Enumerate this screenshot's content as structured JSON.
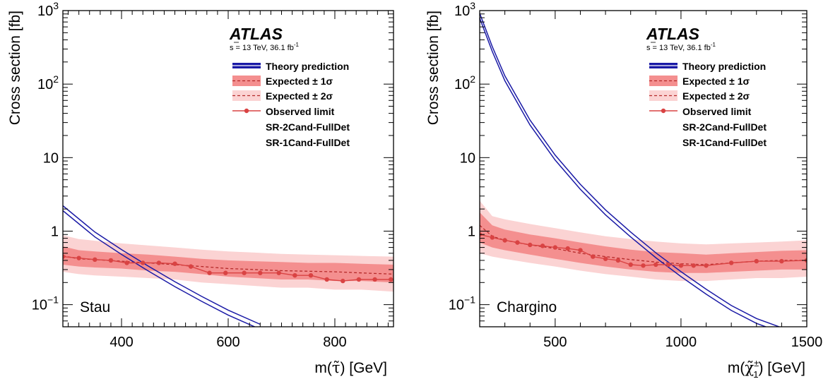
{
  "chart_data": [
    {
      "type": "line",
      "panel_label": "Stau",
      "ylabel": "Cross section [fb]",
      "xlabel": "m(τ̃) [GeV]",
      "xlabel_main": "m",
      "xlabel_particle": "τ̃",
      "xlabel_unit": "[GeV]",
      "xlim": [
        290,
        910
      ],
      "ylim": [
        0.05,
        1000
      ],
      "yscale": "log",
      "xticks": [
        400,
        600,
        800
      ],
      "yticks": [
        {
          "value": 0.1,
          "base": "10",
          "exp": "−1"
        },
        {
          "value": 1,
          "label": "1"
        },
        {
          "value": 10,
          "label": "10"
        },
        {
          "value": 100,
          "base": "10",
          "exp": "2"
        },
        {
          "value": 1000,
          "base": "10",
          "exp": "3"
        }
      ],
      "atlas": {
        "name": "ATLAS",
        "energy": "s = 13 TeV, 36.1 fb",
        "lumi_exp": "-1"
      },
      "legend": [
        "Theory prediction",
        "Expected ± 1σ",
        "Expected ± 2σ",
        "Observed limit",
        "SR-2Cand-FullDet",
        "SR-1Cand-FullDet"
      ],
      "theory": {
        "x": [
          290,
          350,
          400,
          450,
          500,
          550,
          600,
          660
        ],
        "y": [
          2.05,
          0.9,
          0.52,
          0.31,
          0.19,
          0.12,
          0.078,
          0.05
        ]
      },
      "expected": {
        "x": [
          290,
          320,
          350,
          400,
          450,
          500,
          550,
          600,
          650,
          700,
          750,
          800,
          850,
          910
        ],
        "y": [
          0.46,
          0.42,
          0.41,
          0.39,
          0.37,
          0.35,
          0.33,
          0.31,
          0.3,
          0.29,
          0.285,
          0.28,
          0.27,
          0.26
        ],
        "band1_lo": [
          0.35,
          0.33,
          0.32,
          0.31,
          0.29,
          0.28,
          0.26,
          0.24,
          0.23,
          0.22,
          0.22,
          0.21,
          0.21,
          0.2
        ],
        "band1_hi": [
          0.62,
          0.55,
          0.53,
          0.5,
          0.48,
          0.45,
          0.42,
          0.4,
          0.39,
          0.38,
          0.37,
          0.37,
          0.36,
          0.35
        ],
        "band2_lo": [
          0.28,
          0.26,
          0.25,
          0.24,
          0.23,
          0.22,
          0.2,
          0.19,
          0.18,
          0.17,
          0.17,
          0.16,
          0.16,
          0.15
        ],
        "band2_hi": [
          0.88,
          0.78,
          0.74,
          0.68,
          0.64,
          0.6,
          0.56,
          0.53,
          0.51,
          0.49,
          0.48,
          0.47,
          0.46,
          0.45
        ]
      },
      "observed": {
        "x": [
          290,
          320,
          350,
          380,
          410,
          440,
          470,
          500,
          530,
          565,
          595,
          630,
          660,
          695,
          725,
          755,
          785,
          815,
          845,
          875,
          905
        ],
        "y": [
          0.45,
          0.43,
          0.41,
          0.4,
          0.37,
          0.37,
          0.37,
          0.36,
          0.33,
          0.27,
          0.27,
          0.27,
          0.27,
          0.27,
          0.25,
          0.25,
          0.22,
          0.21,
          0.22,
          0.22,
          0.22
        ]
      }
    },
    {
      "type": "line",
      "panel_label": "Chargino",
      "ylabel": "Cross section [fb]",
      "xlabel": "m(χ̃₁±) [GeV]",
      "xlabel_main": "m",
      "xlabel_particle": "χ̃",
      "xlabel_sup": "±",
      "xlabel_sub": "1",
      "xlabel_unit": "[GeV]",
      "xlim": [
        200,
        1500
      ],
      "ylim": [
        0.05,
        1000
      ],
      "yscale": "log",
      "xticks": [
        500,
        1000,
        1500
      ],
      "yticks": [
        {
          "value": 0.1,
          "base": "10",
          "exp": "−1"
        },
        {
          "value": 1,
          "label": "1"
        },
        {
          "value": 10,
          "label": "10"
        },
        {
          "value": 100,
          "base": "10",
          "exp": "2"
        },
        {
          "value": 1000,
          "base": "10",
          "exp": "3"
        }
      ],
      "atlas": {
        "name": "ATLAS",
        "energy": "s = 13 TeV, 36.1 fb",
        "lumi_exp": "-1"
      },
      "legend": [
        "Theory prediction",
        "Expected ± 1σ",
        "Expected ± 2σ",
        "Observed limit",
        "SR-2Cand-FullDet",
        "SR-1Cand-FullDet"
      ],
      "theory": {
        "x": [
          200,
          250,
          300,
          400,
          500,
          600,
          700,
          800,
          900,
          1000,
          1100,
          1200,
          1300,
          1400,
          1500
        ],
        "y": [
          850,
          300,
          120,
          30,
          10,
          4,
          1.8,
          0.9,
          0.47,
          0.26,
          0.15,
          0.09,
          0.06,
          0.045,
          0.042
        ]
      },
      "expected": {
        "x": [
          200,
          250,
          300,
          400,
          500,
          600,
          700,
          800,
          900,
          1000,
          1100,
          1200,
          1300,
          1400,
          1500
        ],
        "y": [
          1.2,
          0.85,
          0.75,
          0.65,
          0.58,
          0.5,
          0.45,
          0.41,
          0.38,
          0.36,
          0.35,
          0.37,
          0.39,
          0.4,
          0.4
        ],
        "band1_lo": [
          0.7,
          0.6,
          0.55,
          0.48,
          0.42,
          0.37,
          0.33,
          0.3,
          0.28,
          0.27,
          0.27,
          0.28,
          0.29,
          0.3,
          0.3
        ],
        "band1_hi": [
          1.8,
          1.2,
          1.05,
          0.9,
          0.8,
          0.7,
          0.62,
          0.56,
          0.52,
          0.5,
          0.48,
          0.5,
          0.52,
          0.54,
          0.55
        ],
        "band2_lo": [
          0.5,
          0.45,
          0.42,
          0.37,
          0.33,
          0.29,
          0.26,
          0.24,
          0.22,
          0.21,
          0.21,
          0.22,
          0.23,
          0.23,
          0.24
        ],
        "band2_hi": [
          2.6,
          1.6,
          1.45,
          1.25,
          1.1,
          0.96,
          0.85,
          0.78,
          0.72,
          0.68,
          0.66,
          0.68,
          0.7,
          0.72,
          0.75
        ]
      },
      "observed": {
        "x": [
          200,
          250,
          300,
          350,
          400,
          450,
          500,
          550,
          600,
          650,
          700,
          750,
          800,
          850,
          900,
          950,
          1000,
          1050,
          1100,
          1200,
          1300,
          1400,
          1500
        ],
        "y": [
          0.9,
          0.82,
          0.75,
          0.7,
          0.65,
          0.63,
          0.6,
          0.58,
          0.55,
          0.45,
          0.42,
          0.4,
          0.35,
          0.34,
          0.35,
          0.35,
          0.34,
          0.34,
          0.34,
          0.37,
          0.39,
          0.39,
          0.4
        ]
      }
    }
  ],
  "colors": {
    "theory": "#1a1aa6",
    "line": "#d94343",
    "band1": "#f48f8f",
    "band2": "#fbd3d3",
    "axis": "#000000"
  }
}
